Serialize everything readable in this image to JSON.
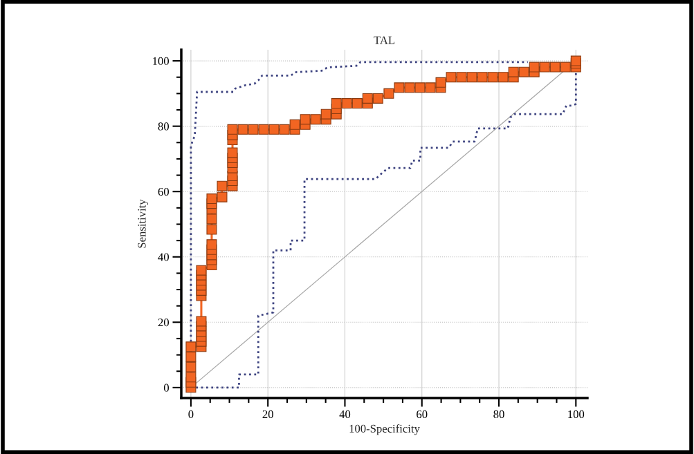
{
  "chart_data": {
    "type": "line",
    "title": "TAL",
    "xlabel": "100-Specificity",
    "ylabel": "Sensitivity",
    "xlim": [
      -2.5,
      103
    ],
    "ylim": [
      -3.2,
      103.4
    ],
    "xticks": [
      0,
      {
        "value": 5,
        "label": null
      },
      {
        "value": 10,
        "label": null
      },
      {
        "value": 15,
        "label": null
      },
      20,
      {
        "value": 25,
        "label": null
      },
      {
        "value": 30,
        "label": null
      },
      {
        "value": 35,
        "label": null
      },
      40,
      {
        "value": 45,
        "label": null
      },
      {
        "value": 50,
        "label": null
      },
      {
        "value": 55,
        "label": null
      },
      60,
      {
        "value": 65,
        "label": null
      },
      {
        "value": 70,
        "label": null
      },
      {
        "value": 75,
        "label": null
      },
      80,
      {
        "value": 85,
        "label": null
      },
      {
        "value": 90,
        "label": null
      },
      {
        "value": 95,
        "label": null
      },
      100
    ],
    "yticks": [
      0,
      {
        "value": 5,
        "label": null
      },
      {
        "value": 10,
        "label": null
      },
      {
        "value": 15,
        "label": null
      },
      20,
      {
        "value": 25,
        "label": null
      },
      {
        "value": 30,
        "label": null
      },
      {
        "value": 35,
        "label": null
      },
      40,
      {
        "value": 45,
        "label": null
      },
      {
        "value": 50,
        "label": null
      },
      {
        "value": 55,
        "label": null
      },
      60,
      {
        "value": 65,
        "label": null
      },
      {
        "value": 70,
        "label": null
      },
      {
        "value": 75,
        "label": null
      },
      80,
      {
        "value": 85,
        "label": null
      },
      {
        "value": 90,
        "label": null
      },
      {
        "value": 95,
        "label": null
      },
      100
    ],
    "grid": true,
    "legend": false,
    "series": [
      {
        "color": "#a8a8a8",
        "line_style": "solid",
        "marker": "none",
        "x": [
          0,
          100
        ],
        "values": [
          0,
          100
        ]
      },
      {
        "color": "#3d4380",
        "line_style": "dotted",
        "marker": "none",
        "x": [
          0,
          0,
          0.6,
          1,
          1.6,
          11,
          11.5,
          14,
          16.5,
          17.5,
          18.5,
          26,
          27,
          34,
          35.5,
          43,
          44,
          87.5
        ],
        "values": [
          0,
          74,
          76,
          77,
          90.5,
          90.5,
          91.5,
          92.5,
          93,
          94,
          95.5,
          95.5,
          96.5,
          97,
          98,
          98.5,
          99.6,
          99.6
        ]
      },
      {
        "color": "#3d4380",
        "line_style": "dotted",
        "marker": "none",
        "x": [
          0,
          12.5,
          12.5,
          17.5,
          17.5,
          21.4,
          21.4,
          25.9,
          25.9,
          29.5,
          29.5,
          48,
          49,
          51.2,
          57,
          57.5,
          59.6,
          59.6,
          67,
          68,
          73.7,
          74.5,
          82.3,
          83,
          84,
          96.6,
          97.5,
          99,
          100,
          100
        ],
        "values": [
          0,
          0,
          4,
          4,
          22,
          23,
          42,
          42,
          45,
          45,
          63.8,
          63.8,
          65,
          67.2,
          67.2,
          69.5,
          69.5,
          73.4,
          73.4,
          75.3,
          75.3,
          79.3,
          79.3,
          82.7,
          83.7,
          83.7,
          86.3,
          86.3,
          86.8,
          96.8
        ]
      },
      {
        "color": "#f26522",
        "line_style": "solid",
        "marker": "square",
        "x": [
          0,
          0,
          0,
          0,
          0,
          0,
          2.7,
          2.7,
          2.7,
          2.7,
          2.7,
          2.7,
          2.7,
          2.7,
          2.7,
          2.7,
          2.7,
          2.7,
          5.4,
          5.4,
          5.4,
          5.4,
          5.4,
          5.4,
          5.4,
          5.4,
          5.4,
          5.4,
          8.1,
          8.1,
          10.8,
          10.8,
          10.8,
          10.8,
          10.8,
          10.8,
          10.8,
          10.8,
          10.8,
          10.8,
          13.5,
          16.2,
          18.9,
          21.6,
          24.3,
          27,
          27,
          29.7,
          29.7,
          32.4,
          35.1,
          35.1,
          37.8,
          37.8,
          37.8,
          40.5,
          43.2,
          45.9,
          45.9,
          48.6,
          51.4,
          54.1,
          56.8,
          59.5,
          62.2,
          64.9,
          64.9,
          67.6,
          70.3,
          73,
          75.7,
          78.4,
          81.1,
          83.8,
          83.8,
          86.5,
          89.2,
          89.2,
          91.9,
          94.6,
          97.3,
          100,
          100,
          100
        ],
        "values": [
          0,
          1.6,
          3.2,
          6.3,
          9.4,
          12.5,
          12.5,
          14.1,
          15.6,
          17.2,
          18.8,
          20.3,
          28.1,
          29.7,
          31.3,
          32.8,
          34.4,
          35.9,
          37.5,
          39.1,
          40.6,
          42.2,
          43.8,
          48.4,
          51.6,
          54.7,
          56.3,
          57.8,
          58.3,
          61.7,
          61.7,
          63.3,
          64.8,
          67.2,
          68.8,
          70.3,
          71.9,
          75.8,
          77.3,
          79,
          79,
          79,
          79,
          79,
          79,
          79,
          80.5,
          80.5,
          82.1,
          82.1,
          82.1,
          83.7,
          83.7,
          85.3,
          87,
          87,
          87,
          87,
          88.5,
          88.5,
          90,
          91.8,
          91.8,
          91.8,
          91.8,
          91.8,
          93.4,
          95,
          95,
          95,
          95,
          95,
          95,
          95,
          96.6,
          96.6,
          96.6,
          98.1,
          98.1,
          98.1,
          98.1,
          98.1,
          99.2,
          100
        ]
      }
    ]
  }
}
